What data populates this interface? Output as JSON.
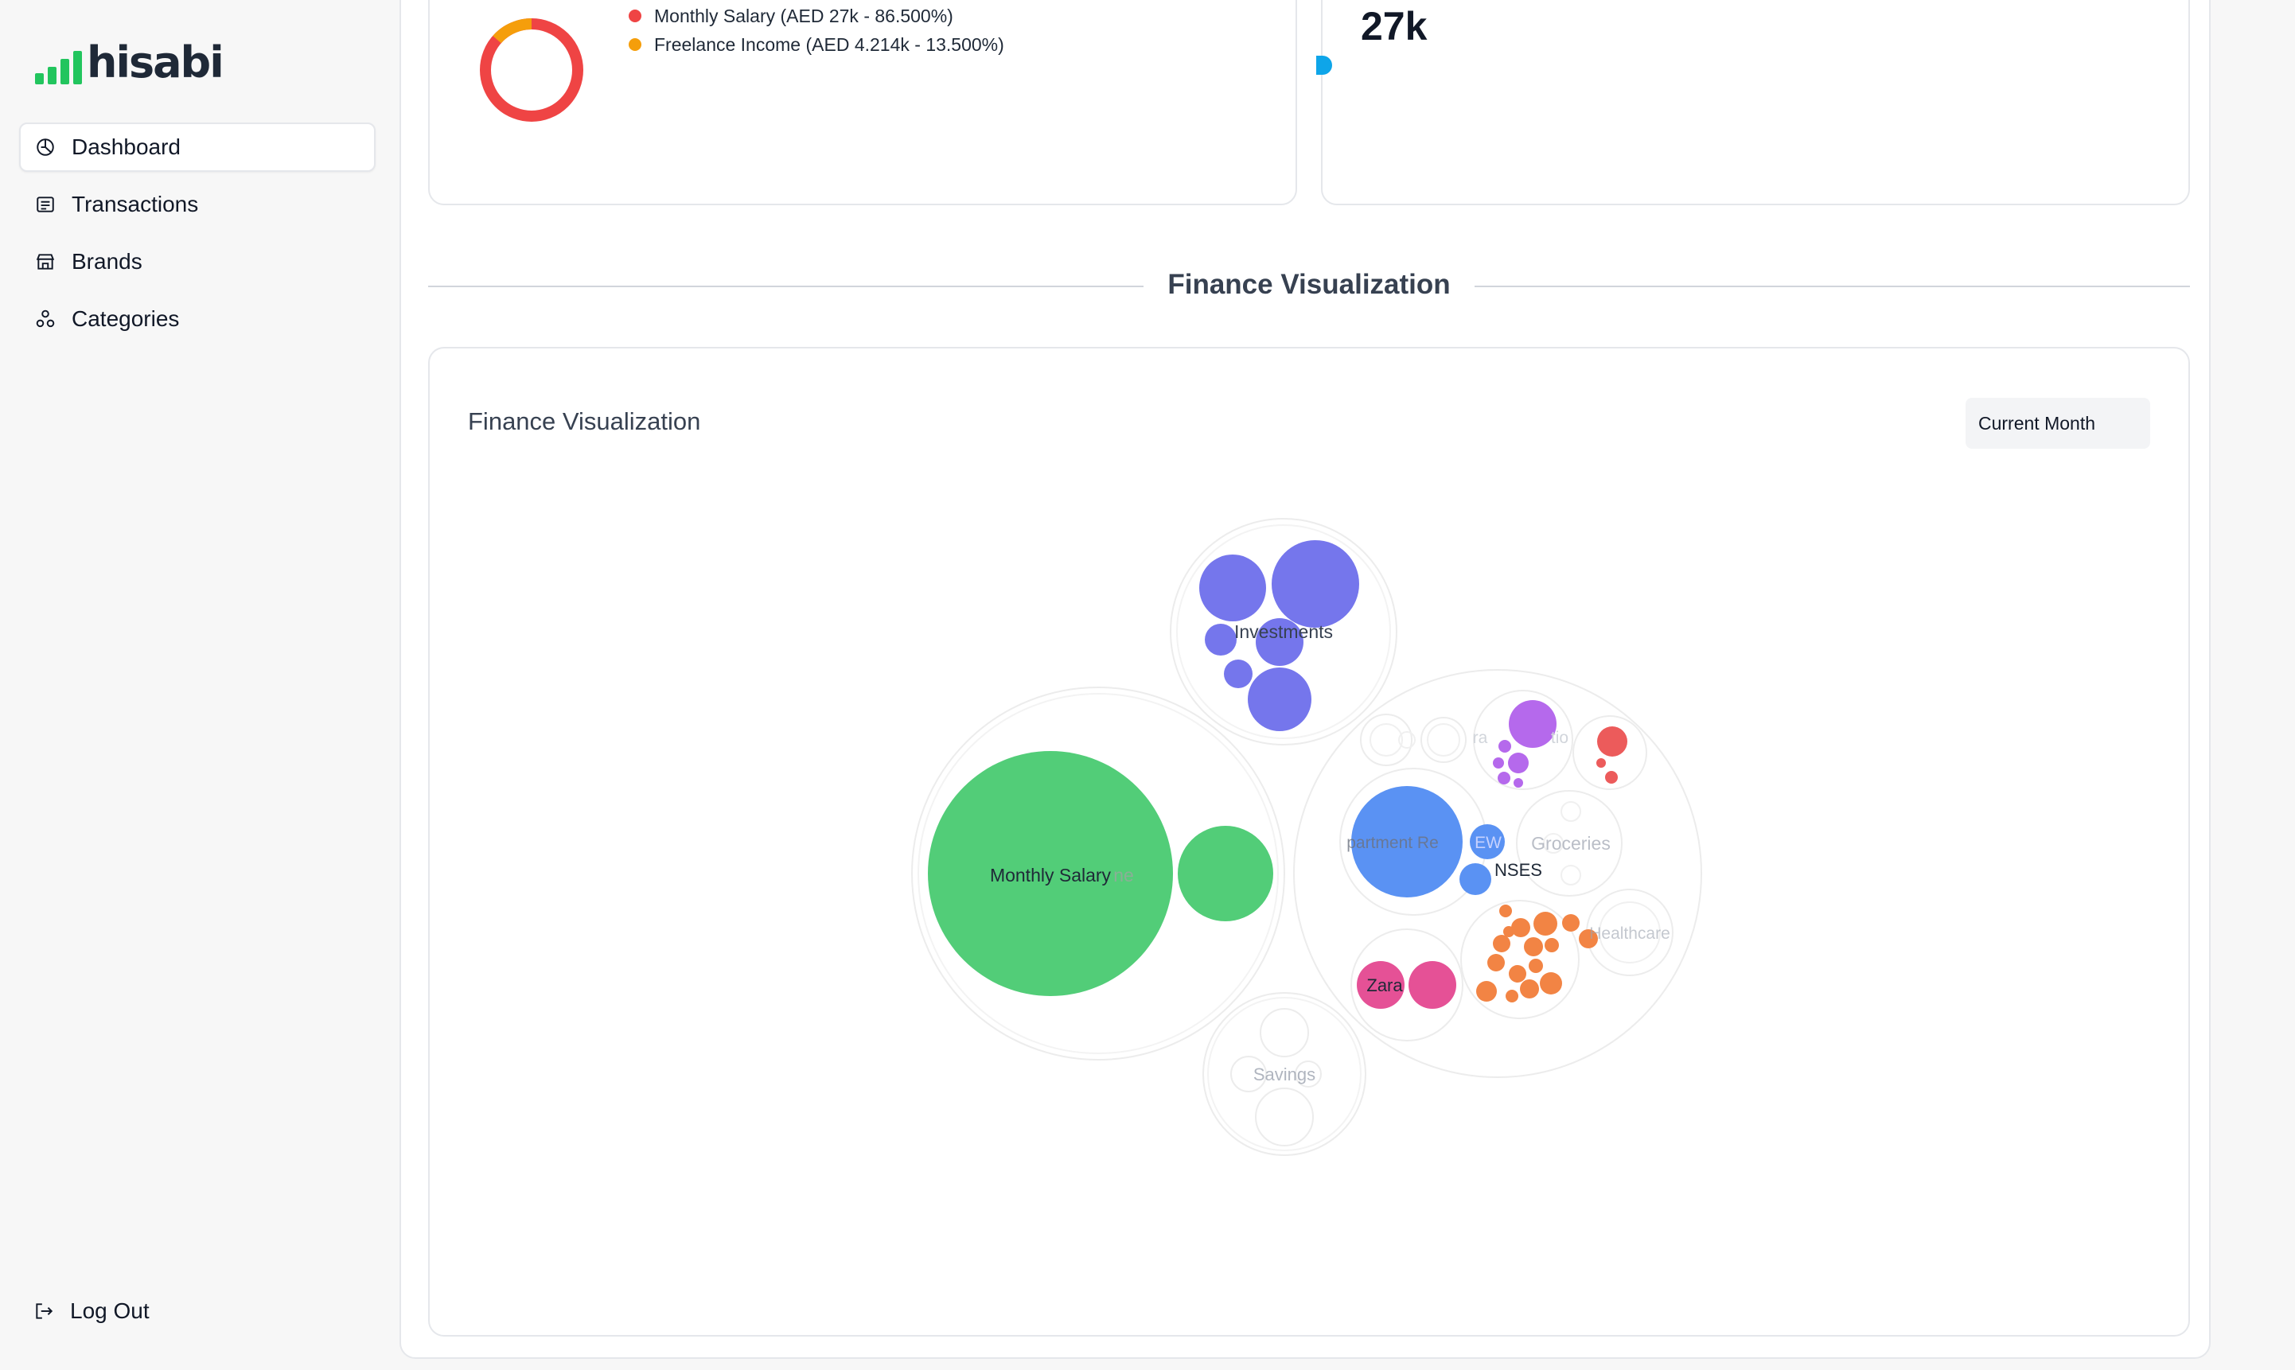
{
  "app": {
    "logo_text": "hisabi"
  },
  "colors": {
    "accent_green": "#22c55e",
    "expense_red": "#ef4444",
    "income_amber": "#f59e0b"
  },
  "sidebar": {
    "items": [
      {
        "label": "Dashboard",
        "icon": "dashboard-icon",
        "active": true
      },
      {
        "label": "Transactions",
        "icon": "transactions-icon",
        "active": false
      },
      {
        "label": "Brands",
        "icon": "store-icon",
        "active": false
      },
      {
        "label": "Categories",
        "icon": "categories-icon",
        "active": false
      }
    ],
    "logout_label": "Log Out"
  },
  "income_card": {
    "legend": [
      {
        "label": "Monthly Salary (AED 27k - 86.500%)",
        "color": "#ef4444"
      },
      {
        "label": "Freelance Income (AED 4.214k - 13.500%)",
        "color": "#f59e0b"
      }
    ],
    "shares": [
      86.5,
      13.5
    ]
  },
  "stat_card": {
    "value": "27k"
  },
  "section": {
    "title": "Finance Visualization"
  },
  "viz": {
    "title": "Finance Visualization",
    "period_select": "Current Month",
    "labels": {
      "investments": "Investments",
      "monthly_salary": "Monthly Salary",
      "income_faded": "ne",
      "savings": "Savings",
      "zara": "Zara",
      "groceries": "Groceries",
      "healthcare": "Healthcare",
      "expenses": "NSES",
      "home": "partment Re",
      "new": "EW",
      "transport": "ra",
      "transport_b": "tio"
    }
  }
}
